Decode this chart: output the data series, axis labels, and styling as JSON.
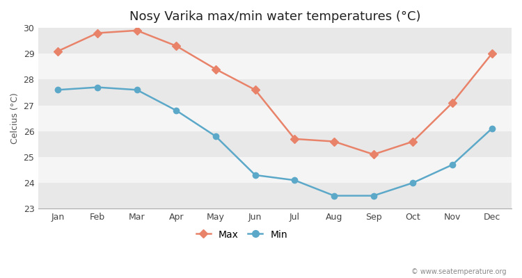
{
  "months": [
    "Jan",
    "Feb",
    "Mar",
    "Apr",
    "May",
    "Jun",
    "Jul",
    "Aug",
    "Sep",
    "Oct",
    "Nov",
    "Dec"
  ],
  "max_temps": [
    29.1,
    29.8,
    29.9,
    29.3,
    28.4,
    27.6,
    25.7,
    25.6,
    25.1,
    25.6,
    27.1,
    29.0
  ],
  "min_temps": [
    27.6,
    27.7,
    27.6,
    26.8,
    25.8,
    24.3,
    24.1,
    23.5,
    23.5,
    24.0,
    24.7,
    26.1
  ],
  "max_color": "#e8836a",
  "min_color": "#5ba8c9",
  "title": "Nosy Varika max/min water temperatures (°C)",
  "ylabel": "Celcius (°C)",
  "ylim": [
    23,
    30
  ],
  "yticks": [
    23,
    24,
    25,
    26,
    27,
    28,
    29,
    30
  ],
  "bg_color": "#ffffff",
  "band_colors": [
    "#e8e8e8",
    "#f5f5f5"
  ],
  "legend_labels": [
    "Max",
    "Min"
  ],
  "watermark": "© www.seatemperature.org"
}
